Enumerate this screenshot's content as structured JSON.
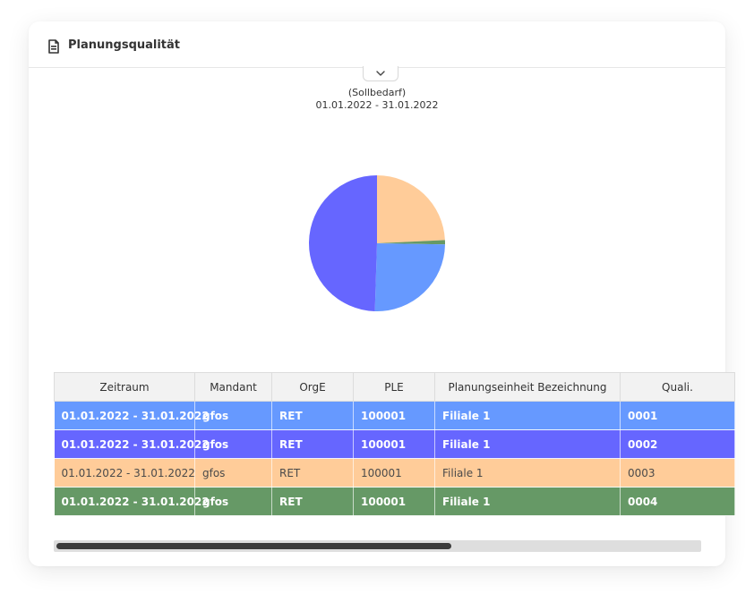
{
  "panel": {
    "title": "Planungsqualität",
    "icon": "document-icon"
  },
  "chart_data": {
    "type": "pie",
    "subtitle": "(Sollbedarf)",
    "date_range": "01.01.2022 - 31.01.2022",
    "slices": [
      {
        "name": "0001",
        "value": 25,
        "color": "#6699ff"
      },
      {
        "name": "0002",
        "value": 49,
        "color": "#6666ff"
      },
      {
        "name": "0003",
        "value": 24,
        "color": "#ffcc99"
      },
      {
        "name": "0004",
        "value": 1,
        "color": "#669966"
      }
    ]
  },
  "table": {
    "headers": [
      "Zeitraum",
      "Mandant",
      "OrgE",
      "PLE",
      "Planungseinheit Bezeichnung",
      "Quali."
    ],
    "rows": [
      {
        "cells": [
          "01.01.2022 - 31.01.2022",
          "gfos",
          "RET",
          "100001",
          "Filiale 1",
          "0001"
        ],
        "color": "#6699ff",
        "bold": true
      },
      {
        "cells": [
          "01.01.2022 - 31.01.2022",
          "gfos",
          "RET",
          "100001",
          "Filiale 1",
          "0002"
        ],
        "color": "#6666ff",
        "bold": true
      },
      {
        "cells": [
          "01.01.2022 - 31.01.2022",
          "gfos",
          "RET",
          "100001",
          "Filiale 1",
          "0003"
        ],
        "color": "#ffcc99",
        "bold": false
      },
      {
        "cells": [
          "01.01.2022 - 31.01.2022",
          "gfos",
          "RET",
          "100001",
          "Filiale 1",
          "0004"
        ],
        "color": "#669966",
        "bold": true
      }
    ]
  }
}
